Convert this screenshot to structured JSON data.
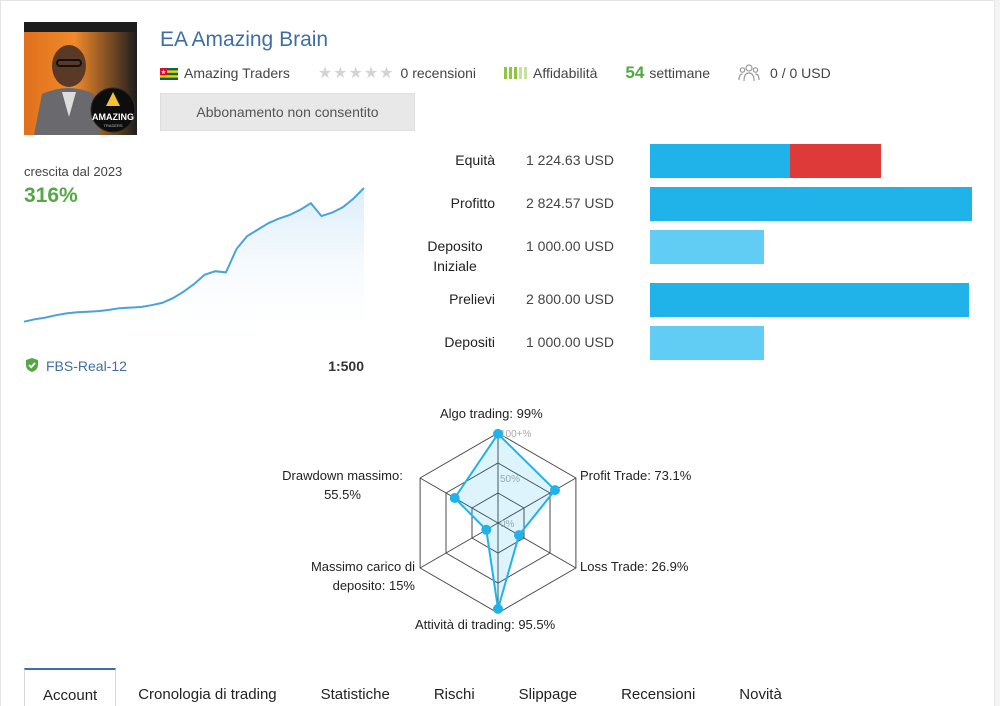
{
  "header": {
    "title": "EA Amazing Brain",
    "author": "Amazing Traders",
    "reviews": "0 recensioni",
    "reliability": "Affidabilità",
    "weeks_value": "54",
    "weeks_label": "settimane",
    "subscribers": "0 / 0 USD",
    "subscribe_button": "Abbonamento non consentito",
    "avatar_logo_text": "AMAZING",
    "avatar_logo_sub": "TRADERS"
  },
  "growth": {
    "label": "crescita dal 2023",
    "value": "316%",
    "account": "FBS-Real-12",
    "leverage": "1:500",
    "series": [
      4,
      8,
      11,
      15,
      18,
      20,
      21,
      22,
      24,
      27,
      28,
      29,
      32,
      36,
      44,
      55,
      68,
      84,
      90,
      88,
      128,
      150,
      161,
      172,
      180,
      186,
      195,
      206,
      184,
      190,
      199,
      214,
      232
    ]
  },
  "stats": [
    {
      "label": "Equità",
      "value": "1 224.63 USD"
    },
    {
      "label": "Profitto",
      "value": "2 824.57 USD"
    },
    {
      "label": "Deposito Iniziale",
      "value": "1 000.00 USD"
    },
    {
      "label": "Prelievi",
      "value": "2 800.00 USD"
    },
    {
      "label": "Depositi",
      "value": "1 000.00 USD"
    }
  ],
  "stat_bars": {
    "max": 2824.57,
    "equity_part": 1224.63,
    "loss_part": 800,
    "colors": {
      "primary": "#1fb3ea",
      "light": "#62cdf4",
      "loss": "#de3a3a"
    }
  },
  "radar": {
    "scale_labels": [
      "100+%",
      "50%",
      "0%"
    ],
    "axes": [
      {
        "label": "Algo trading: 99%",
        "value": 99
      },
      {
        "label": "Profit Trade: 73.1%",
        "value": 73.1
      },
      {
        "label": "Loss Trade: 26.9%",
        "value": 26.9
      },
      {
        "label": "Attività di trading: 95.5%",
        "value": 95.5
      },
      {
        "label": "Massimo carico di deposito: 15%",
        "value": 15
      },
      {
        "label": "Drawdown massimo: 55.5%",
        "value": 55.5
      }
    ],
    "label_lines": {
      "top": "Algo trading: 99%",
      "upper_right": "Profit Trade: 73.1%",
      "lower_right": "Loss Trade: 26.9%",
      "bottom": "Attività di trading: 95.5%",
      "lower_left_1": "Massimo carico di",
      "lower_left_2": "deposito: 15%",
      "upper_left_1": "Drawdown massimo:",
      "upper_left_2": "55.5%"
    },
    "color": "#1fb3ea"
  },
  "tabs": [
    {
      "label": "Account",
      "active": true
    },
    {
      "label": "Cronologia di trading"
    },
    {
      "label": "Statistiche"
    },
    {
      "label": "Rischi"
    },
    {
      "label": "Slippage"
    },
    {
      "label": "Recensioni"
    },
    {
      "label": "Novità"
    }
  ]
}
